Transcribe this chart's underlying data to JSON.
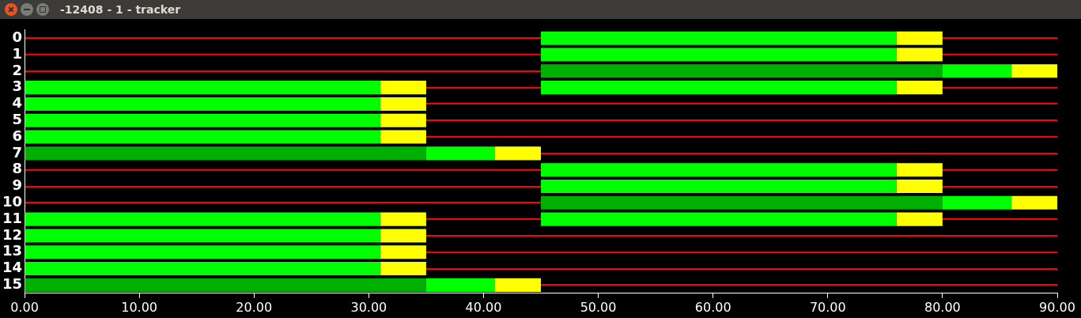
{
  "chart_data": {
    "type": "bar",
    "title": "-12408 - 1 - tracker",
    "orientation": "horizontal",
    "grid": "y",
    "categories": [
      "0",
      "1",
      "2",
      "3",
      "4",
      "5",
      "6",
      "7",
      "8",
      "9",
      "10",
      "11",
      "12",
      "13",
      "14",
      "15"
    ],
    "xlim": [
      0,
      90
    ],
    "xticks": [
      {
        "value": 0,
        "label": "0.00"
      },
      {
        "value": 10,
        "label": "10.00"
      },
      {
        "value": 20,
        "label": "20.00"
      },
      {
        "value": 30,
        "label": "30.00"
      },
      {
        "value": 40,
        "label": "40.00"
      },
      {
        "value": 50,
        "label": "50.00"
      },
      {
        "value": 60,
        "label": "60.00"
      },
      {
        "value": 70,
        "label": "70.00"
      },
      {
        "value": 80,
        "label": "80.00"
      },
      {
        "value": 90,
        "label": "90.00"
      }
    ],
    "series": [
      {
        "color": "#00b000",
        "base": [
          null,
          null,
          null,
          null,
          null,
          null,
          null,
          0,
          null,
          null,
          null,
          null,
          null,
          null,
          null,
          0
        ],
        "values": [
          null,
          null,
          null,
          null,
          null,
          null,
          null,
          35,
          null,
          null,
          null,
          null,
          null,
          null,
          null,
          35
        ]
      },
      {
        "color": "#00ff00",
        "base": [
          null,
          null,
          null,
          0,
          0,
          0,
          0,
          35,
          null,
          null,
          null,
          0,
          0,
          0,
          0,
          35
        ],
        "values": [
          null,
          null,
          null,
          31,
          31,
          31,
          31,
          6,
          null,
          null,
          null,
          31,
          31,
          31,
          31,
          6
        ]
      },
      {
        "color": "#ffff00",
        "base": [
          null,
          null,
          null,
          31,
          31,
          31,
          31,
          41,
          null,
          null,
          null,
          31,
          31,
          31,
          31,
          41
        ],
        "values": [
          null,
          null,
          null,
          4,
          4,
          4,
          4,
          4,
          null,
          null,
          null,
          4,
          4,
          4,
          4,
          4
        ]
      },
      {
        "color": "#00b000",
        "base": [
          null,
          null,
          45,
          null,
          null,
          null,
          null,
          null,
          null,
          null,
          45,
          null,
          null,
          null,
          null,
          null
        ],
        "values": [
          null,
          null,
          35,
          null,
          null,
          null,
          null,
          null,
          null,
          null,
          35,
          null,
          null,
          null,
          null,
          null
        ]
      },
      {
        "color": "#00ff00",
        "base": [
          45,
          45,
          80,
          45,
          null,
          null,
          null,
          null,
          45,
          45,
          80,
          45,
          null,
          null,
          null,
          null
        ],
        "values": [
          31,
          31,
          6,
          31,
          null,
          null,
          null,
          null,
          31,
          31,
          6,
          31,
          null,
          null,
          null,
          null
        ]
      },
      {
        "color": "#ffff00",
        "base": [
          76,
          76,
          86,
          76,
          null,
          null,
          null,
          null,
          76,
          76,
          86,
          76,
          null,
          null,
          null,
          null
        ],
        "values": [
          4,
          4,
          4,
          4,
          null,
          null,
          null,
          null,
          4,
          4,
          4,
          4,
          null,
          null,
          null,
          null
        ]
      }
    ]
  }
}
